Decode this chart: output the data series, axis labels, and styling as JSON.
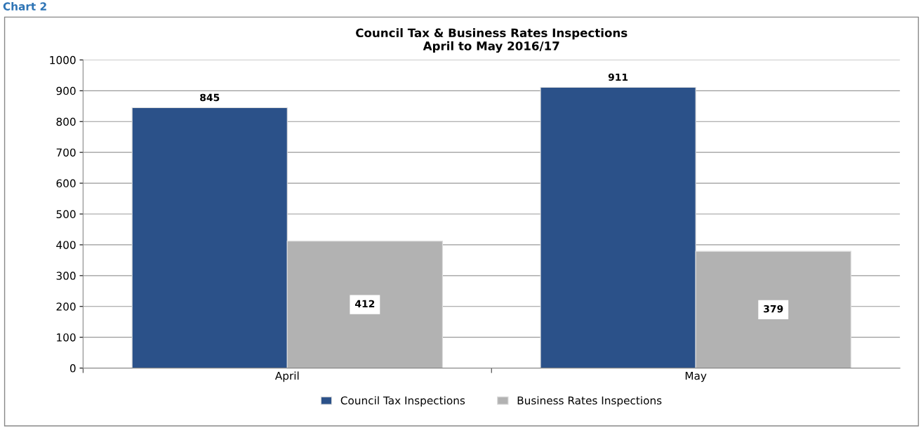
{
  "chart_data": {
    "type": "bar",
    "title": "Council Tax & Business Rates Inspections\nApril to May 2016/17",
    "categories": [
      "April",
      "May"
    ],
    "series": [
      {
        "name": "Council Tax Inspections",
        "color": "#2b5189",
        "values": [
          845,
          911
        ]
      },
      {
        "name": "Business Rates Inspections",
        "color": "#b2b2b2",
        "values": [
          412,
          379
        ]
      }
    ],
    "ylim": [
      0,
      1000
    ],
    "yticks": [
      0,
      100,
      200,
      300,
      400,
      500,
      600,
      700,
      800,
      900,
      1000
    ],
    "grid": "y",
    "legend": "bottom",
    "data_labels": true,
    "annotations": [
      "Chart 2"
    ]
  }
}
